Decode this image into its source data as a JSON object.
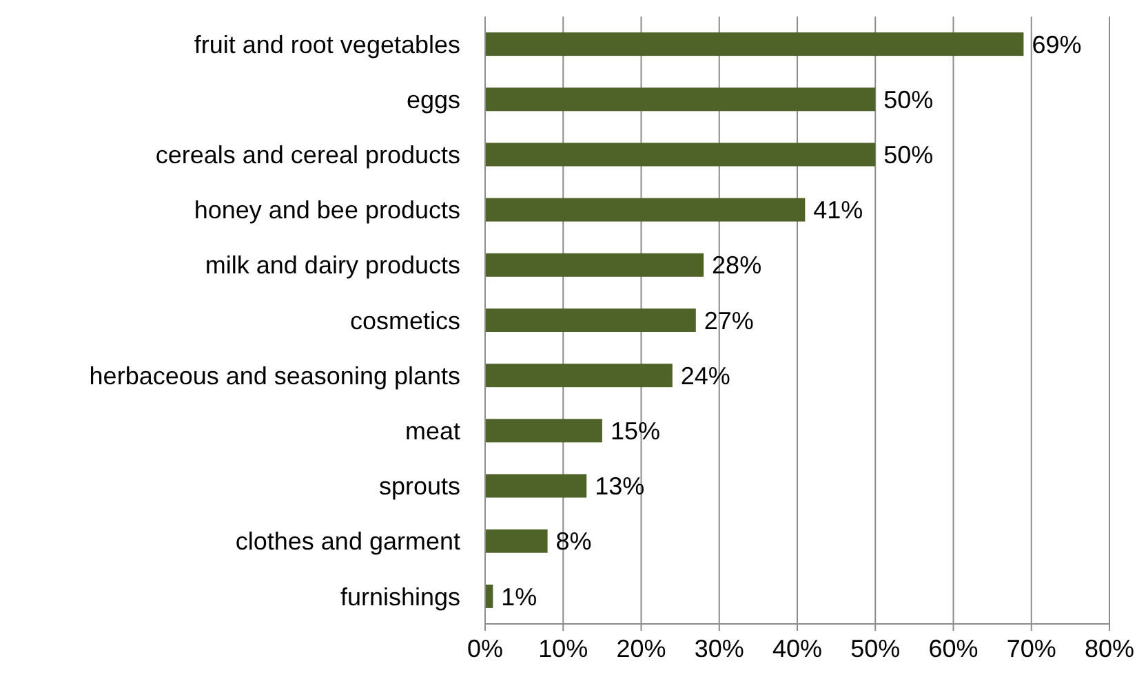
{
  "chart_data": {
    "type": "bar",
    "orientation": "horizontal",
    "categories": [
      "fruit and root vegetables",
      "eggs",
      "cereals and cereal products",
      "honey and bee products",
      "milk and dairy products",
      "cosmetics",
      "herbaceous and seasoning plants",
      "meat",
      "sprouts",
      "clothes and garment",
      "furnishings"
    ],
    "values": [
      69,
      50,
      50,
      41,
      28,
      27,
      24,
      15,
      13,
      8,
      1
    ],
    "value_labels": [
      "69%",
      "50%",
      "50%",
      "41%",
      "28%",
      "27%",
      "24%",
      "15%",
      "13%",
      "8%",
      "1%"
    ],
    "color": "#4f6228",
    "xlim": [
      0,
      80
    ],
    "xticks": [
      {
        "value": 0,
        "label": "0%"
      },
      {
        "value": 10,
        "label": "10%"
      },
      {
        "value": 20,
        "label": "20%"
      },
      {
        "value": 30,
        "label": "30%"
      },
      {
        "value": 40,
        "label": "40%"
      },
      {
        "value": 50,
        "label": "50%"
      },
      {
        "value": 60,
        "label": "60%"
      },
      {
        "value": 70,
        "label": "70%"
      },
      {
        "value": 80,
        "label": "80%"
      }
    ],
    "grid": "x"
  }
}
